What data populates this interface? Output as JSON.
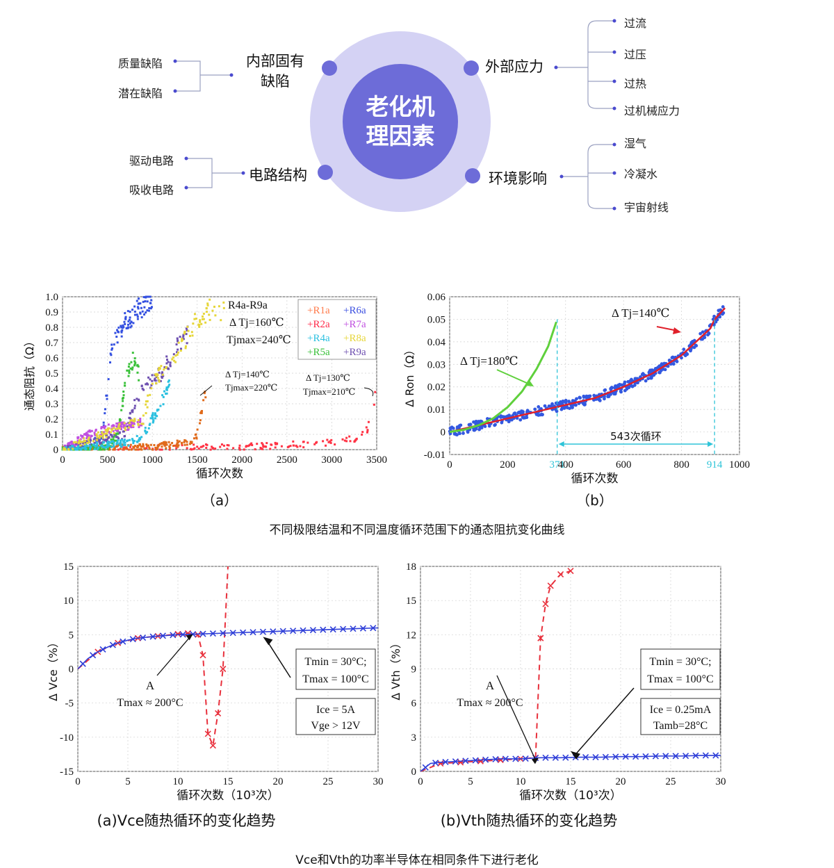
{
  "mindmap": {
    "center": "老化机理因素",
    "center_lines": [
      "老化机",
      "理因素"
    ],
    "branches": [
      {
        "label_lines": [
          "内部固有",
          "缺陷"
        ],
        "leaves": [
          "质量缺陷",
          "潜在缺陷"
        ]
      },
      {
        "label_lines": [
          "外部应力"
        ],
        "leaves": [
          "过流",
          "过压",
          "过热",
          "过机械应力"
        ]
      },
      {
        "label_lines": [
          "电路结构"
        ],
        "leaves": [
          "驱动电路",
          "吸收电路"
        ]
      },
      {
        "label_lines": [
          "环境影响"
        ],
        "leaves": [
          "湿气",
          "冷凝水",
          "宇宙射线"
        ]
      }
    ],
    "colors": {
      "outer_ring": "#d4d2f4",
      "inner_circle": "#6d6cd8",
      "dot": "#6d6cd8",
      "line": "#9aa0c0"
    }
  },
  "caption1": "不同极限结温和不同温度循环范围下的通态阻抗变化曲线",
  "caption2": "Vce和Vth的功率半导体在相同条件下进行老化",
  "chart_data": [
    {
      "type": "scatter",
      "panel_label": "（a）",
      "xlabel": "循环次数",
      "ylabel": "通态阻抗（Ω）",
      "xlim": [
        0,
        3500
      ],
      "ylim": [
        0,
        1.0
      ],
      "xticks": [
        "0",
        "500",
        "1000",
        "1500",
        "2000",
        "2500",
        "3000",
        "3500"
      ],
      "yticks": [
        "0",
        "0.1",
        "0.2",
        "0.3",
        "0.4",
        "0.5",
        "0.6",
        "0.7",
        "0.8",
        "0.9",
        "1.0"
      ],
      "legend": [
        "+R1a",
        "+R2a",
        "+R4a",
        "+R5a",
        "+R6a",
        "+R7a",
        "+R8a",
        "+R9a"
      ],
      "legend_colors": [
        "#ff7a4a",
        "#ff2a4a",
        "#2bc0e0",
        "#3bc13b",
        "#3b4fe0",
        "#c04fe0",
        "#e6d63a",
        "#6d4fb0"
      ],
      "annotations": [
        {
          "lines": [
            "R4a-R9a",
            "Δ Tj=160℃",
            "Tjmax=240℃"
          ]
        },
        {
          "lines": [
            "Δ Tj=140℃",
            "Tjmax=220℃"
          ]
        },
        {
          "lines": [
            "Δ Tj=130℃",
            "Tjmax=210℃"
          ]
        }
      ],
      "series": [
        {
          "name": "R1a",
          "color": "#ff3344",
          "x": [
            0,
            500,
            1000,
            1500,
            2000,
            2500,
            3000,
            3300,
            3400,
            3450,
            3500
          ],
          "y": [
            0,
            0.005,
            0.01,
            0.015,
            0.02,
            0.03,
            0.05,
            0.08,
            0.13,
            0.3,
            0.36
          ]
        },
        {
          "name": "R2a",
          "color": "#e06a1a",
          "x": [
            0,
            500,
            1000,
            1300,
            1450,
            1500,
            1550,
            1600
          ],
          "y": [
            0,
            0.01,
            0.02,
            0.04,
            0.05,
            0.1,
            0.25,
            0.4
          ]
        },
        {
          "name": "R6a",
          "color": "#3450e0",
          "x": [
            0,
            300,
            450,
            500,
            550,
            650,
            800,
            1000
          ],
          "y": [
            0,
            0.02,
            0.1,
            0.4,
            0.7,
            0.8,
            0.9,
            1.0
          ]
        },
        {
          "name": "R5a",
          "color": "#3bc13b",
          "x": [
            0,
            500,
            600,
            650,
            700,
            750,
            800,
            850
          ],
          "y": [
            0,
            0.02,
            0.08,
            0.2,
            0.45,
            0.55,
            0.6,
            0.5
          ]
        },
        {
          "name": "R7a",
          "color": "#c04fe0",
          "x": [
            0,
            300,
            400,
            600,
            800,
            900
          ],
          "y": [
            0,
            0.1,
            0.12,
            0.15,
            0.16,
            0.18
          ]
        },
        {
          "name": "R9a",
          "color": "#6d4fb0",
          "x": [
            0,
            700,
            800,
            900,
            1000,
            1100,
            1200,
            1300,
            1400
          ],
          "y": [
            0,
            0.1,
            0.3,
            0.4,
            0.45,
            0.5,
            0.6,
            0.7,
            0.75
          ]
        },
        {
          "name": "R4a",
          "color": "#2bc0e0",
          "x": [
            0,
            800,
            900,
            1000,
            1100,
            1200
          ],
          "y": [
            0,
            0.05,
            0.1,
            0.2,
            0.3,
            0.45
          ]
        },
        {
          "name": "R8a",
          "color": "#e6d63a",
          "x": [
            0,
            900,
            1000,
            1200,
            1400,
            1500,
            1600,
            1700,
            1800
          ],
          "y": [
            0,
            0.2,
            0.45,
            0.55,
            0.75,
            0.85,
            0.9,
            0.95,
            0.9
          ]
        }
      ]
    },
    {
      "type": "scatter",
      "panel_label": "（b）",
      "xlabel": "循环次数",
      "ylabel": "Δ Ron（Ω）",
      "xlim": [
        0,
        1000
      ],
      "ylim": [
        -0.01,
        0.06
      ],
      "xticks": [
        "0",
        "200",
        "371",
        "400",
        "600",
        "800",
        "914",
        "1000"
      ],
      "yticks": [
        "-0.01",
        "0",
        "0.01",
        "0.02",
        "0.03",
        "0.04",
        "0.05",
        "0.06"
      ],
      "annotations": [
        {
          "lines": [
            "Δ Tj=140℃"
          ]
        },
        {
          "lines": [
            "Δ Tj=180℃"
          ]
        },
        {
          "lines": [
            "543次循环"
          ]
        }
      ],
      "series": [
        {
          "name": "Δ Tj=180℃",
          "color": "#5fd03c",
          "x": [
            0,
            50,
            100,
            150,
            200,
            250,
            300,
            340,
            371
          ],
          "y": [
            0,
            0.001,
            0.003,
            0.006,
            0.011,
            0.018,
            0.028,
            0.038,
            0.05
          ]
        },
        {
          "name": "Δ Tj=140℃",
          "color": "#3358e0",
          "x": [
            0,
            100,
            200,
            300,
            400,
            500,
            600,
            700,
            800,
            900,
            914,
            950
          ],
          "y": [
            0,
            0.003,
            0.006,
            0.009,
            0.012,
            0.015,
            0.02,
            0.026,
            0.034,
            0.046,
            0.05,
            0.055
          ]
        }
      ]
    },
    {
      "type": "line",
      "panel_label": "(a)Vce随热循环的变化趋势",
      "xlabel": "循环次数（10³次）",
      "ylabel": "Δ Vce（%）",
      "xlim": [
        0,
        30
      ],
      "ylim": [
        -15,
        15
      ],
      "xticks": [
        "0",
        "5",
        "10",
        "15",
        "20",
        "25",
        "30"
      ],
      "yticks": [
        "-15",
        "-10",
        "-5",
        "0",
        "5",
        "10",
        "15"
      ],
      "annotations": [
        {
          "lines": [
            "A",
            "Tmax ≈ 200°C"
          ]
        },
        {
          "lines": [
            "Tmin = 30°C;",
            "Tmax = 100°C"
          ]
        },
        {
          "lines": [
            "Ice = 5A",
            "Vge > 12V"
          ]
        }
      ],
      "series": [
        {
          "color": "#2f3fd8",
          "x": [
            0,
            1,
            2,
            3,
            4,
            5,
            6,
            8,
            10,
            12,
            14,
            16,
            18,
            20,
            22,
            24,
            26,
            28,
            30
          ],
          "y": [
            0,
            1.5,
            2.5,
            3.2,
            3.8,
            4.2,
            4.5,
            4.8,
            5.0,
            5.1,
            5.2,
            5.3,
            5.4,
            5.5,
            5.6,
            5.7,
            5.8,
            5.9,
            6.0
          ]
        },
        {
          "color": "#e8303c",
          "x": [
            0,
            2,
            4,
            6,
            8,
            10,
            11,
            12,
            12.5,
            13,
            13.5,
            14,
            14.5,
            15
          ],
          "y": [
            0,
            2.5,
            3.8,
            4.5,
            4.8,
            5.1,
            5.2,
            5.0,
            2,
            -9.5,
            -11.2,
            -6.5,
            0,
            15
          ]
        }
      ]
    },
    {
      "type": "line",
      "panel_label": "(b)Vth随热循环的变化趋势",
      "xlabel": "循环次数（10³次）",
      "ylabel": "Δ Vth（%）",
      "xlim": [
        0,
        30
      ],
      "ylim": [
        0,
        18
      ],
      "xticks": [
        "0",
        "5",
        "10",
        "15",
        "20",
        "25",
        "30"
      ],
      "yticks": [
        "0",
        "3",
        "6",
        "9",
        "12",
        "15",
        "18"
      ],
      "annotations": [
        {
          "lines": [
            "A",
            "Tmax ≈ 200°C"
          ]
        },
        {
          "lines": [
            "Tmin = 30°C;",
            "Tmax = 100°C"
          ]
        },
        {
          "lines": [
            "Ice = 0.25mA",
            "Tamb=28°C"
          ]
        }
      ],
      "series": [
        {
          "color": "#2f3fd8",
          "x": [
            0,
            1,
            2,
            4,
            6,
            8,
            10,
            12,
            14,
            16,
            18,
            20,
            22,
            24,
            26,
            28,
            30
          ],
          "y": [
            0,
            0.7,
            0.8,
            0.9,
            1.0,
            1.1,
            1.1,
            1.2,
            1.2,
            1.25,
            1.25,
            1.3,
            1.3,
            1.35,
            1.35,
            1.4,
            1.4
          ]
        },
        {
          "color": "#e8303c",
          "x": [
            0,
            2,
            4,
            6,
            8,
            10,
            11.5,
            12,
            12.5,
            13,
            14,
            15
          ],
          "y": [
            0,
            0.7,
            0.8,
            0.9,
            1.0,
            1.1,
            1.2,
            11.7,
            14.7,
            16.3,
            17.3,
            17.6
          ]
        }
      ]
    }
  ]
}
